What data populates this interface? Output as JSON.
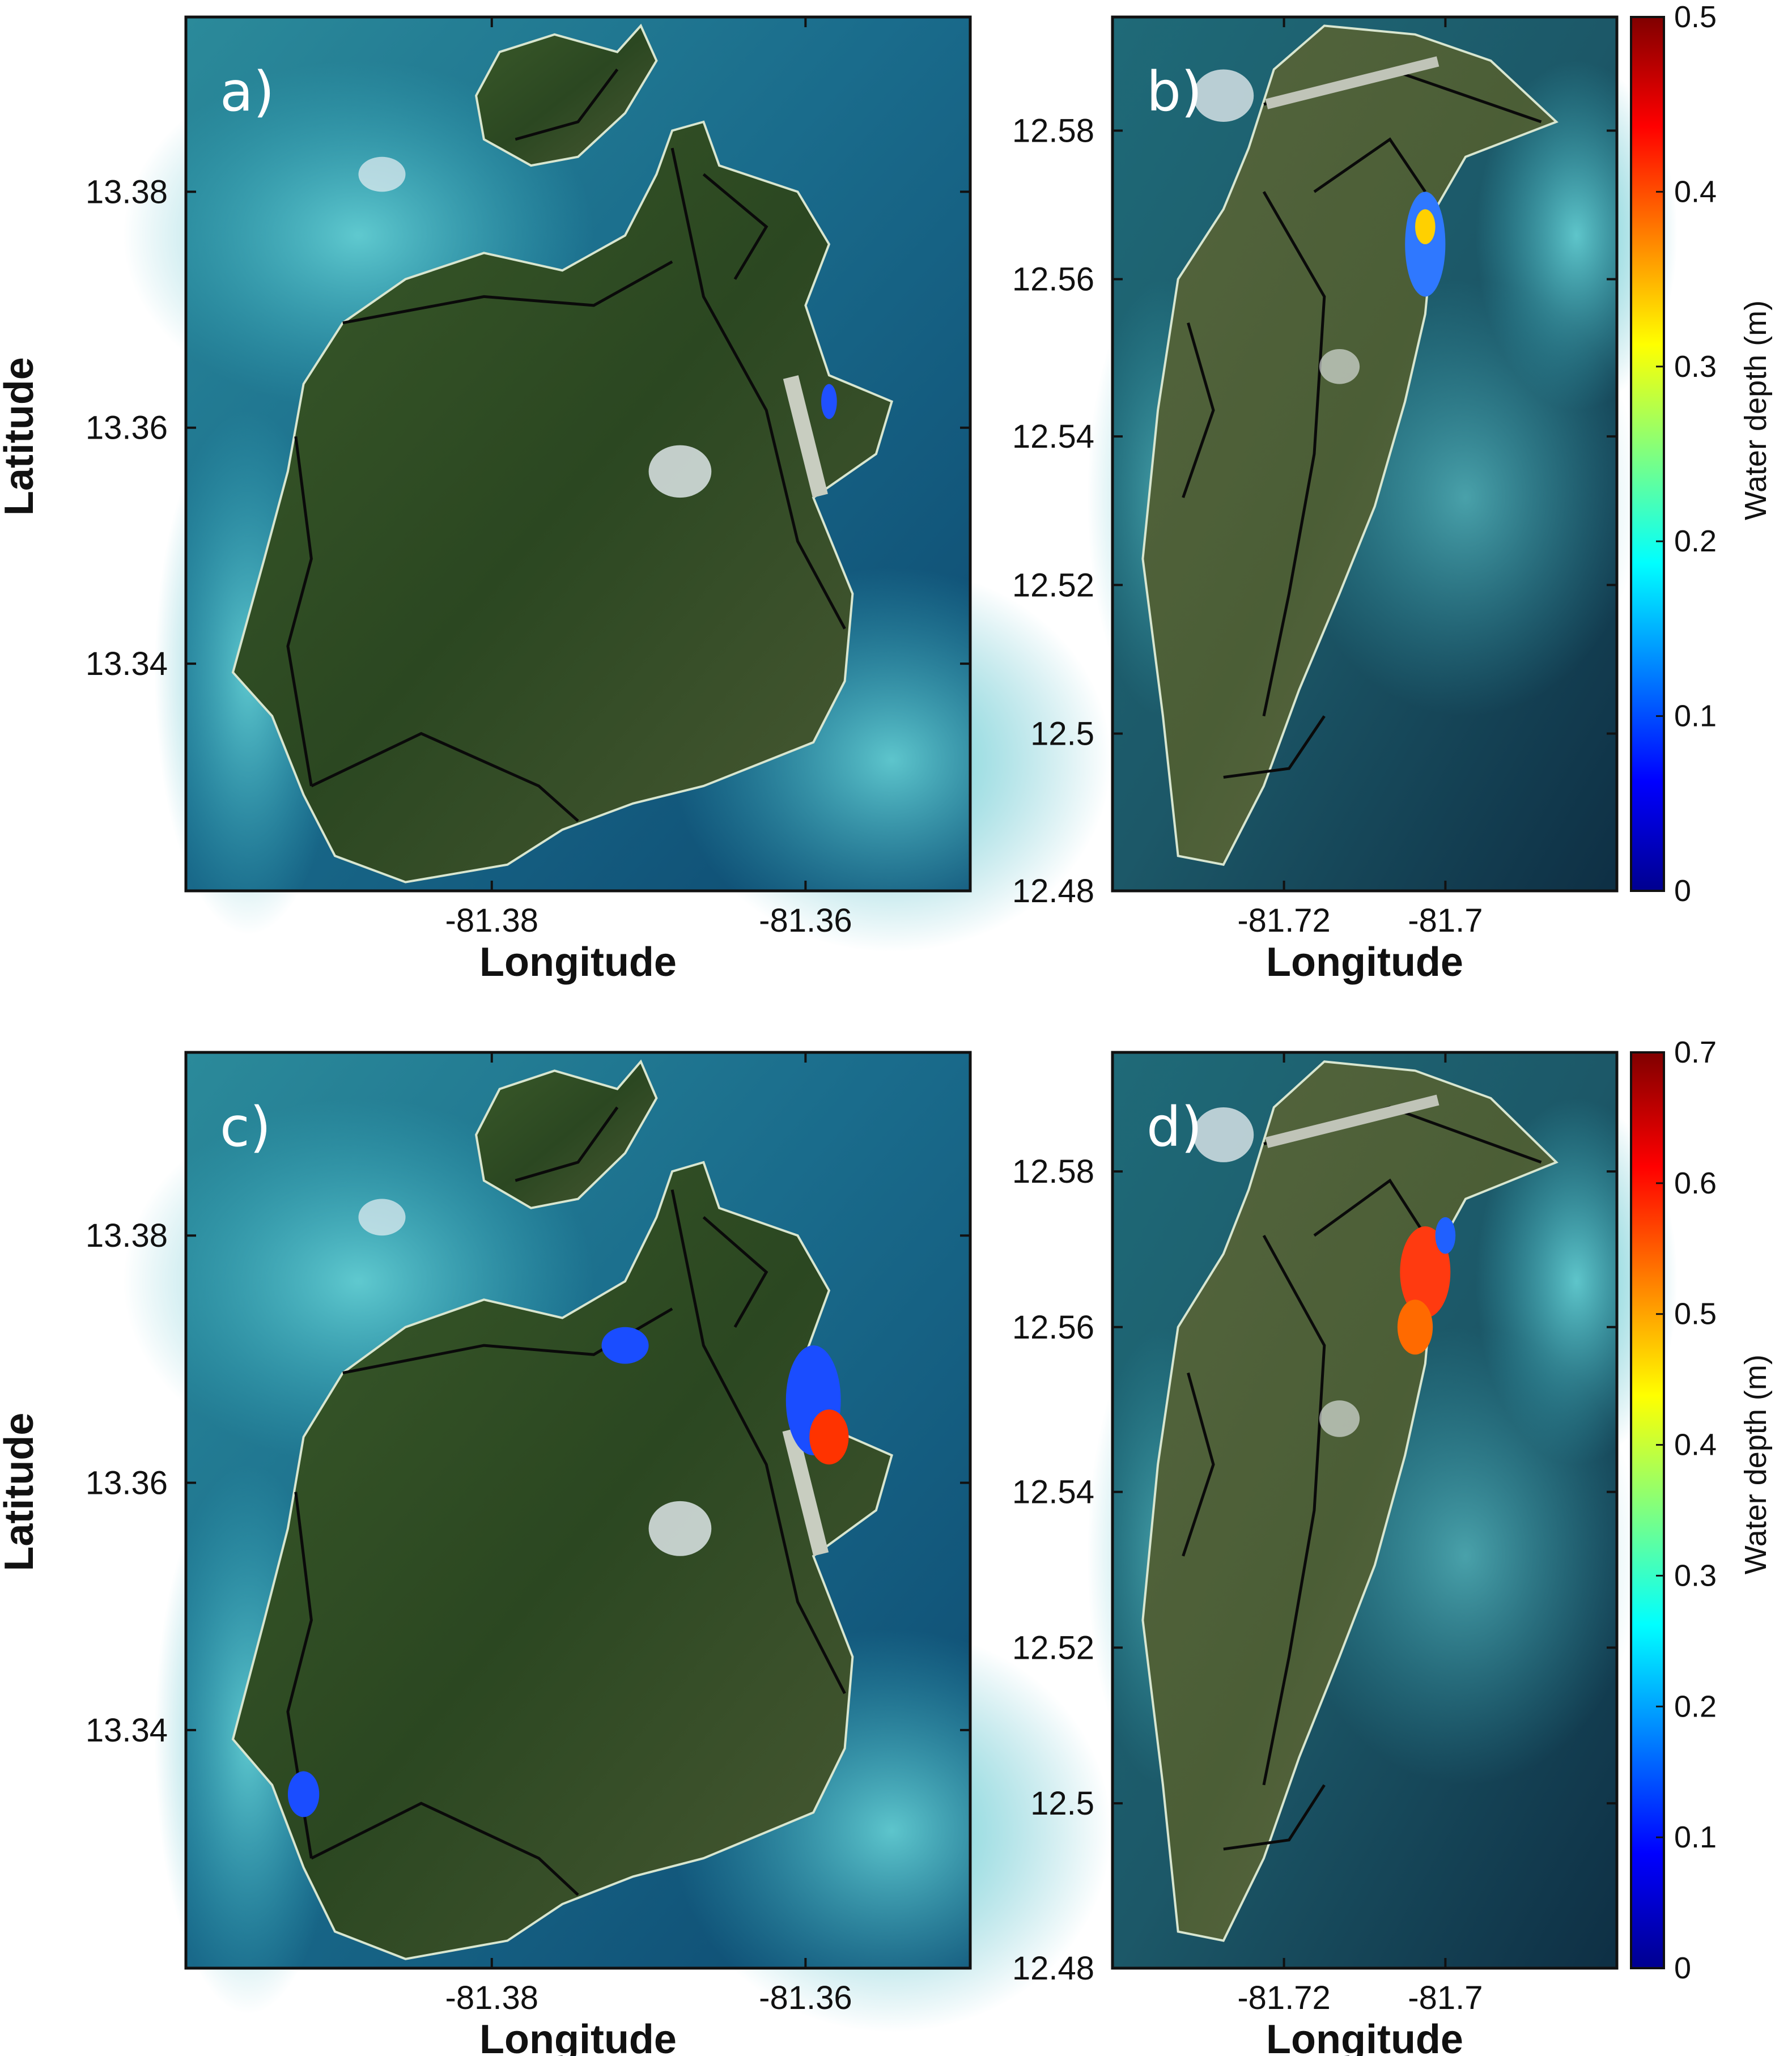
{
  "panels": [
    {
      "label": "a)",
      "x_ticks": [
        "-81.38",
        "-81.36"
      ],
      "y_ticks": [
        "13.38",
        "13.36",
        "13.34"
      ],
      "xlabel": "Longitude",
      "ylabel": "Latitude"
    },
    {
      "label": "b)",
      "x_ticks": [
        "-81.72",
        "-81.7"
      ],
      "y_ticks": [
        "12.58",
        "12.56",
        "12.54",
        "12.52",
        "12.5",
        "12.48"
      ],
      "xlabel": "Longitude",
      "colorbar": {
        "label": "Water depth (m)",
        "ticks": [
          "0.5",
          "0.4",
          "0.3",
          "0.2",
          "0.1",
          "0"
        ]
      }
    },
    {
      "label": "c)",
      "x_ticks": [
        "-81.38",
        "-81.36"
      ],
      "y_ticks": [
        "13.38",
        "13.36",
        "13.34"
      ],
      "xlabel": "Longitude",
      "ylabel": "Latitude"
    },
    {
      "label": "d)",
      "x_ticks": [
        "-81.72",
        "-81.7"
      ],
      "y_ticks": [
        "12.58",
        "12.56",
        "12.54",
        "12.52",
        "12.5",
        "12.48"
      ],
      "xlabel": "Longitude",
      "colorbar": {
        "label": "Water depth (m)",
        "ticks": [
          "0.7",
          "0.6",
          "0.5",
          "0.4",
          "0.3",
          "0.2",
          "0.1",
          "0"
        ]
      }
    }
  ],
  "colors": {
    "sea_deep": "#0f4f78",
    "sea_shallow": "#3fb6c4",
    "land": "#2e4a22",
    "land_light": "#5b6b3c",
    "roads": "#0a0a0a",
    "colormap": [
      "#00008f",
      "#0000ff",
      "#00ffff",
      "#ffff00",
      "#ff0000",
      "#800000"
    ]
  }
}
